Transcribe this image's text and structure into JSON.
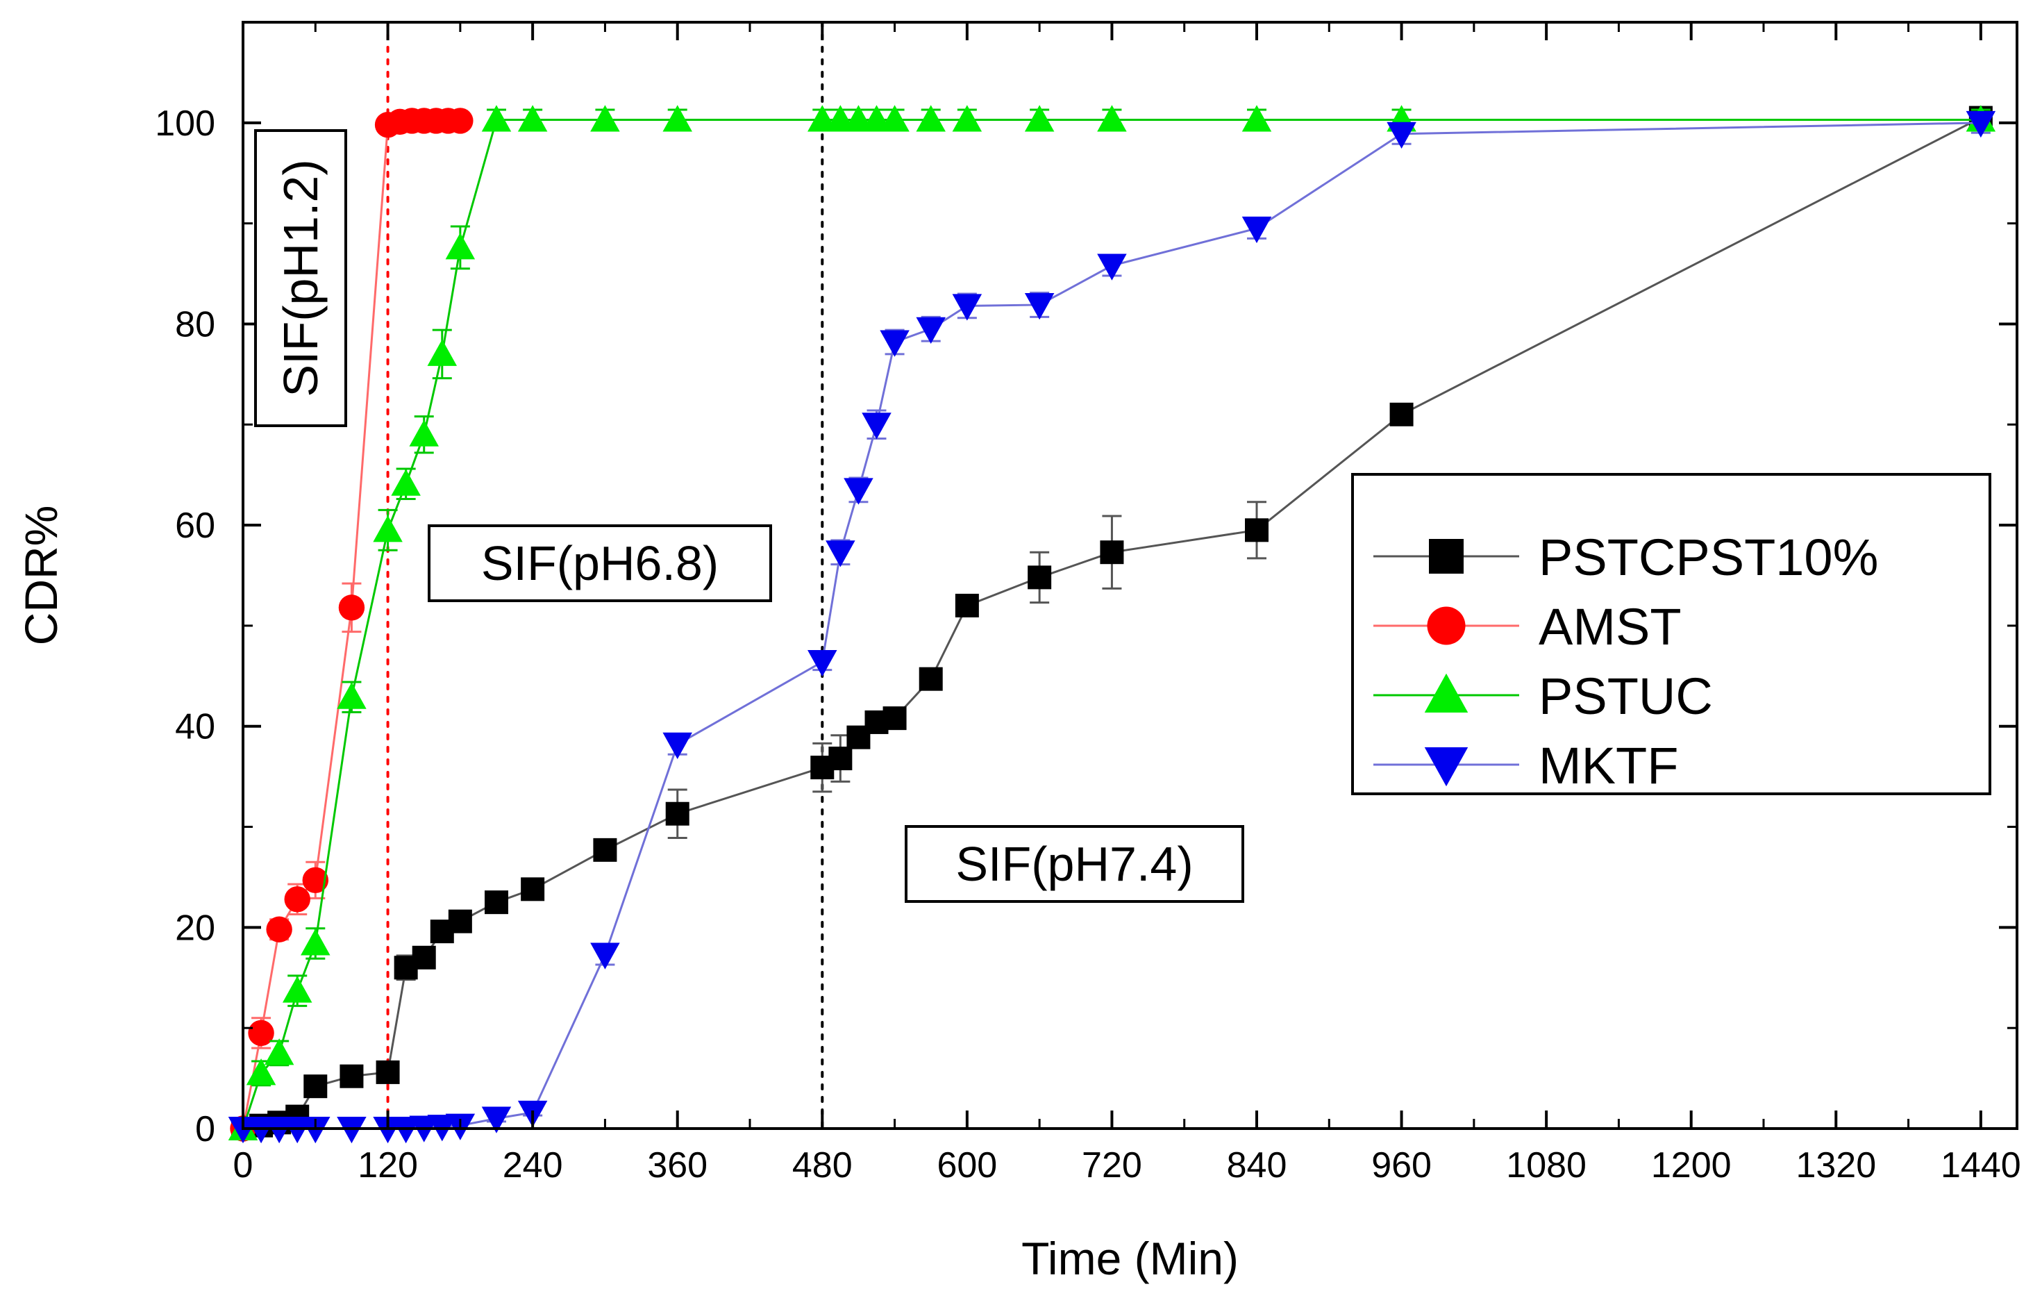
{
  "chart_data": {
    "type": "line",
    "title": "",
    "xlabel": "Time (Min)",
    "ylabel": "CDR%",
    "xlim": [
      0,
      1470
    ],
    "ylim": [
      0,
      110
    ],
    "xticks": [
      0,
      120,
      240,
      360,
      480,
      600,
      720,
      840,
      960,
      1080,
      1200,
      1320,
      1440
    ],
    "yticks": [
      0,
      20,
      40,
      60,
      80,
      100
    ],
    "grid": false,
    "legend_position": "center-right",
    "vlines": [
      {
        "x": 120,
        "color": "#ff0000",
        "style": "dotted"
      },
      {
        "x": 480,
        "color": "#000000",
        "style": "dotted"
      }
    ],
    "annotations": [
      {
        "text": "SIF(pH1.2)",
        "rotation": "vertical",
        "anchor_x": 40,
        "anchor_y": 88
      },
      {
        "text": "SIF(pH6.8)",
        "rotation": "horizontal",
        "anchor_x": 320,
        "anchor_y": 56
      },
      {
        "text": "SIF(pH7.4)",
        "rotation": "horizontal",
        "anchor_x": 705,
        "anchor_y": 28
      }
    ],
    "series": [
      {
        "name": "PSTCPST10%",
        "color": "#000000",
        "line_color": "#555555",
        "marker": "square",
        "x": [
          0,
          15,
          30,
          45,
          60,
          90,
          120,
          135,
          150,
          165,
          180,
          210,
          240,
          300,
          360,
          480,
          495,
          510,
          525,
          540,
          570,
          600,
          660,
          720,
          840,
          960,
          1440
        ],
        "y": [
          0,
          0.3,
          0.6,
          1.2,
          4.2,
          5.2,
          5.6,
          16,
          17,
          19.6,
          20.6,
          22.5,
          23.8,
          27.7,
          31.3,
          35.9,
          36.8,
          38.9,
          40.4,
          40.8,
          44.7,
          52,
          54.8,
          57.3,
          59.5,
          71,
          100.5
        ],
        "err": [
          0,
          0.3,
          0.3,
          0.5,
          0.5,
          0.6,
          0.8,
          1.2,
          1,
          1,
          1,
          0.8,
          0.8,
          0.9,
          2.4,
          2.4,
          2.3,
          1,
          1,
          0.8,
          0.8,
          0.8,
          2.5,
          3.6,
          2.8,
          0.6,
          0.8
        ]
      },
      {
        "name": "AMST",
        "color": "#ff0000",
        "line_color": "#ff6a6a",
        "marker": "circle",
        "x": [
          0,
          15,
          30,
          45,
          60,
          90,
          120,
          130,
          140,
          150,
          160,
          170,
          180
        ],
        "y": [
          0,
          9.5,
          19.8,
          22.8,
          24.7,
          51.8,
          99.8,
          100.1,
          100.2,
          100.2,
          100.2,
          100.2,
          100.2
        ],
        "err": [
          0,
          1.5,
          1,
          1.5,
          1.8,
          2.4,
          0.4,
          0.3,
          0.3,
          0.3,
          0.3,
          0.3,
          0.3
        ]
      },
      {
        "name": "PSTUC",
        "color": "#00ee00",
        "line_color": "#00c800",
        "marker": "triangle-up",
        "x": [
          0,
          15,
          30,
          45,
          60,
          90,
          120,
          135,
          150,
          165,
          180,
          210,
          240,
          300,
          360,
          480,
          495,
          510,
          525,
          540,
          570,
          600,
          660,
          720,
          840,
          960,
          1440
        ],
        "y": [
          0,
          5.5,
          7.5,
          13.7,
          18.4,
          42.9,
          59.5,
          64.1,
          69,
          77,
          87.6,
          100.3,
          100.3,
          100.3,
          100.3,
          100.3,
          100.3,
          100.3,
          100.3,
          100.3,
          100.3,
          100.3,
          100.3,
          100.3,
          100.3,
          100.3,
          100.3
        ],
        "err": [
          0,
          1.2,
          1.2,
          1.5,
          1.5,
          1.5,
          2,
          1.5,
          1.8,
          2.4,
          2.1,
          1,
          1,
          1,
          1,
          1,
          1,
          1,
          1,
          1,
          1,
          1,
          1,
          1,
          1,
          1,
          1
        ]
      },
      {
        "name": "MKTF",
        "color": "#0000ee",
        "line_color": "#7070d8",
        "marker": "triangle-down",
        "x": [
          0,
          15,
          30,
          45,
          60,
          90,
          120,
          135,
          150,
          165,
          180,
          210,
          240,
          300,
          360,
          480,
          495,
          510,
          525,
          540,
          570,
          600,
          660,
          720,
          840,
          960,
          1440
        ],
        "y": [
          0,
          0,
          0,
          0,
          0,
          0,
          0,
          0,
          0.1,
          0.2,
          0.3,
          1,
          1.6,
          17.3,
          38.2,
          46.4,
          57.3,
          63.5,
          70,
          78.2,
          79.5,
          81.8,
          81.9,
          85.8,
          89.5,
          98.9,
          100
        ],
        "err": [
          0,
          0,
          0,
          0,
          0,
          0,
          0,
          0,
          0,
          0,
          0,
          0.3,
          0.3,
          1,
          1,
          0.8,
          1.2,
          1.2,
          1.4,
          1.2,
          1.2,
          1.2,
          1.2,
          1,
          1,
          1,
          1
        ]
      }
    ]
  }
}
